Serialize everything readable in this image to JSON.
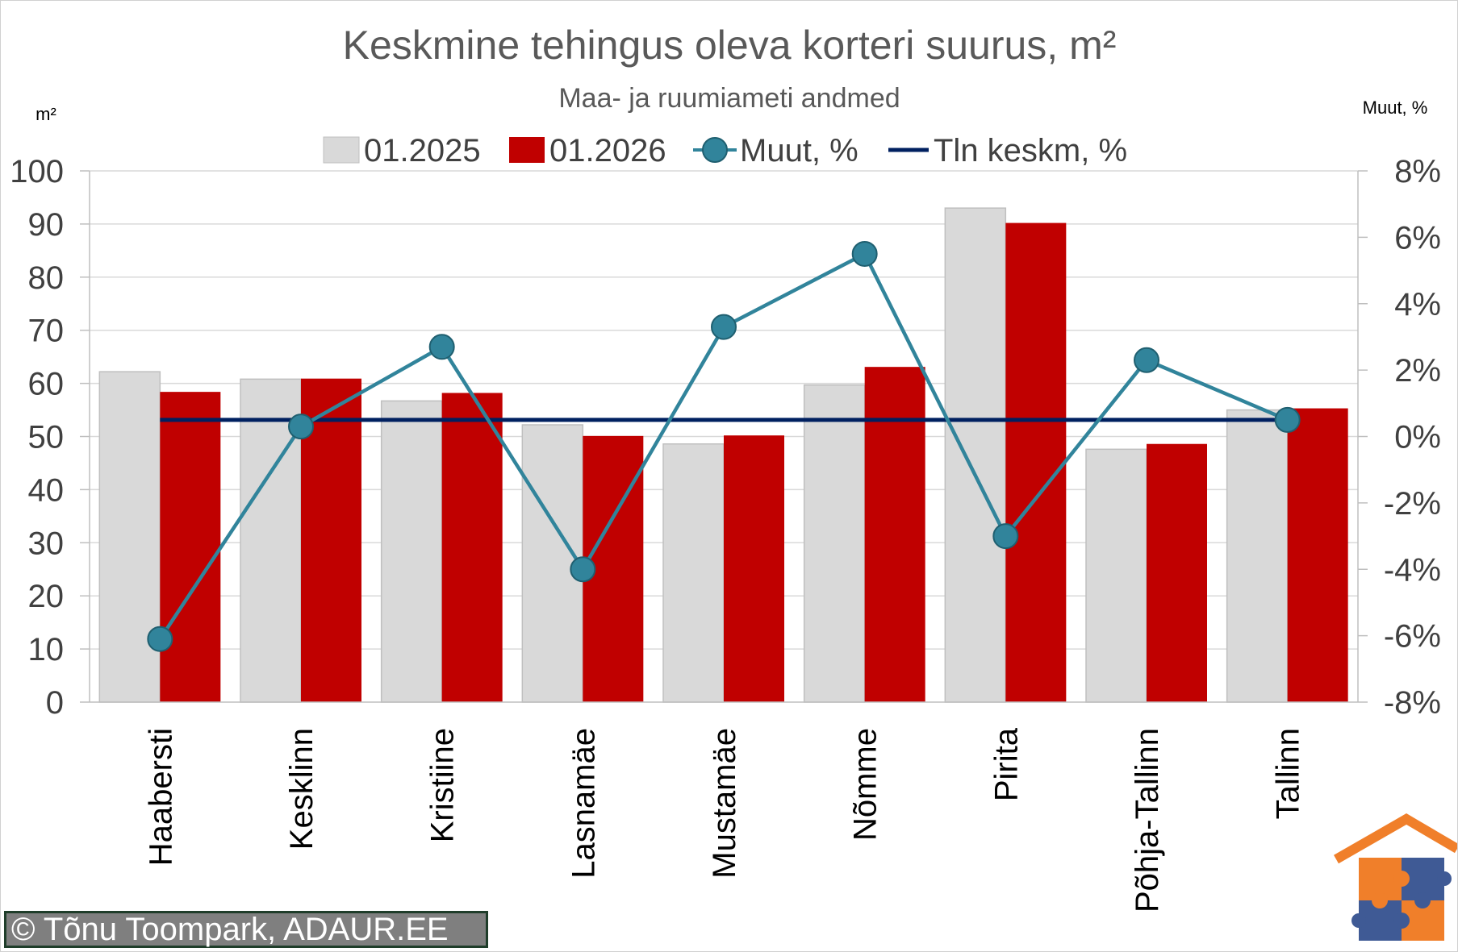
{
  "chart_data": {
    "type": "bar",
    "title": "Keskmine tehingus oleva korteri suurus, m²",
    "subtitle": "Maa- ja ruumiameti andmed",
    "ylabel_left": "m²",
    "ylabel_right": "Muut, %",
    "categories": [
      "Haabersti",
      "Kesklinn",
      "Kristiine",
      "Lasnamäe",
      "Mustamäe",
      "Nõmme",
      "Pirita",
      "Põhja-Tallinn",
      "Tallinn"
    ],
    "series": [
      {
        "name": "01.2025",
        "kind": "bar",
        "axis": "left",
        "color": "#d9d9d9",
        "values": [
          62.2,
          60.8,
          56.7,
          52.2,
          48.6,
          59.7,
          93.0,
          47.6,
          55.0
        ]
      },
      {
        "name": "01.2026",
        "kind": "bar",
        "axis": "left",
        "color": "#c00000",
        "values": [
          58.4,
          60.9,
          58.2,
          50.1,
          50.2,
          63.1,
          90.2,
          48.6,
          55.3
        ]
      },
      {
        "name": "Muut, %",
        "kind": "line-marker",
        "axis": "right",
        "color": "#31849b",
        "values": [
          -6.1,
          0.3,
          2.7,
          -4.0,
          3.3,
          5.5,
          -3.0,
          2.3,
          0.5
        ]
      },
      {
        "name": "Tln keskm, %",
        "kind": "line",
        "axis": "right",
        "color": "#002060",
        "values": [
          0.5,
          0.5,
          0.5,
          0.5,
          0.5,
          0.5,
          0.5,
          0.5,
          0.5
        ]
      }
    ],
    "ylim_left": [
      0,
      100
    ],
    "yticks_left": [
      "0",
      "10",
      "20",
      "30",
      "40",
      "50",
      "60",
      "70",
      "80",
      "90",
      "100"
    ],
    "ylim_right": [
      -8,
      8
    ],
    "yticks_right": [
      "-8%",
      "-6%",
      "-4%",
      "-2%",
      "0%",
      "2%",
      "4%",
      "6%",
      "8%"
    ],
    "grid": true,
    "legend_position": "top"
  },
  "credit": "© Tõnu Toompark, ADAUR.EE",
  "logo": "puzzle-house-logo"
}
